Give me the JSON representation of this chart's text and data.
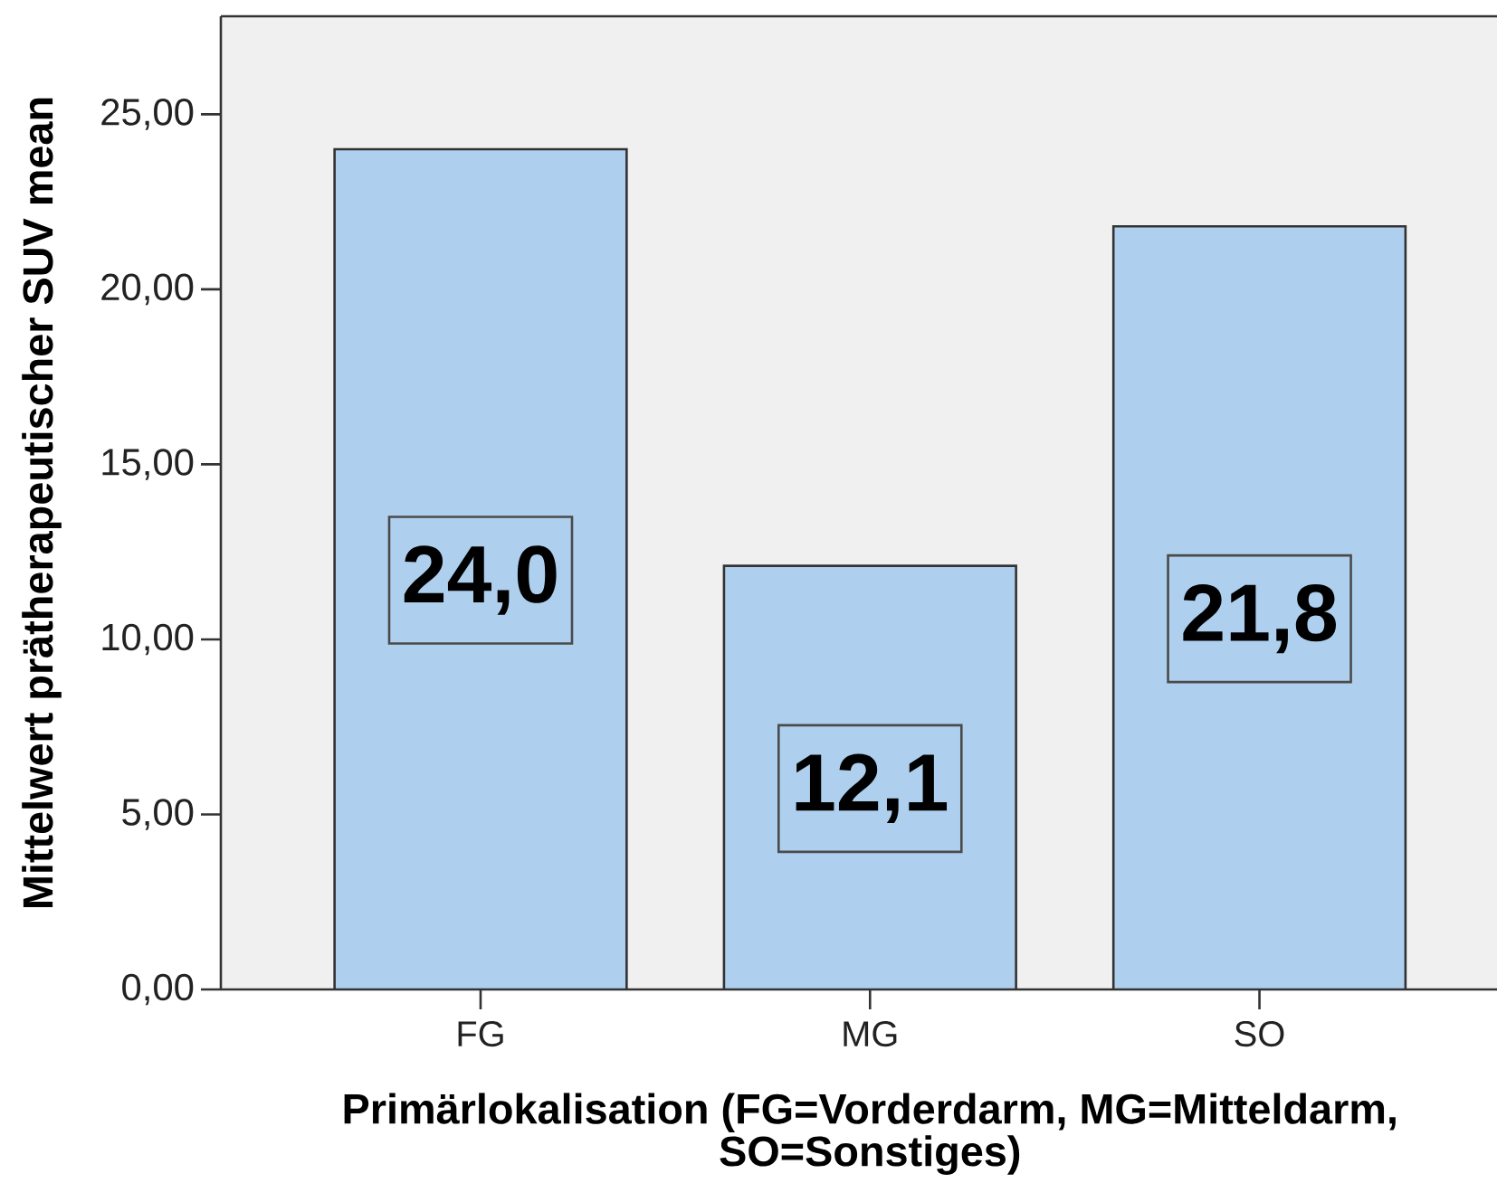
{
  "chart_data": {
    "type": "bar",
    "xlabel": "Primärlokalisation (FG=Vorderdarm, MG=Mitteldarm, SO=Sonstiges)",
    "ylabel": "Mittelwert prätherapeutischer SUV mean",
    "categories": [
      "FG",
      "MG",
      "SO"
    ],
    "values": [
      24.0,
      12.1,
      21.8
    ],
    "value_labels": [
      "24,0",
      "12,1",
      "21,8"
    ],
    "color": "#aed0ee",
    "ylim": [
      0,
      27.8
    ],
    "yticks": [
      {
        "value": 0,
        "label": "0,00"
      },
      {
        "value": 5,
        "label": "5,00"
      },
      {
        "value": 10,
        "label": "10,00"
      },
      {
        "value": 15,
        "label": "15,00"
      },
      {
        "value": 20,
        "label": "20,00"
      },
      {
        "value": 25,
        "label": "25,00"
      }
    ]
  }
}
